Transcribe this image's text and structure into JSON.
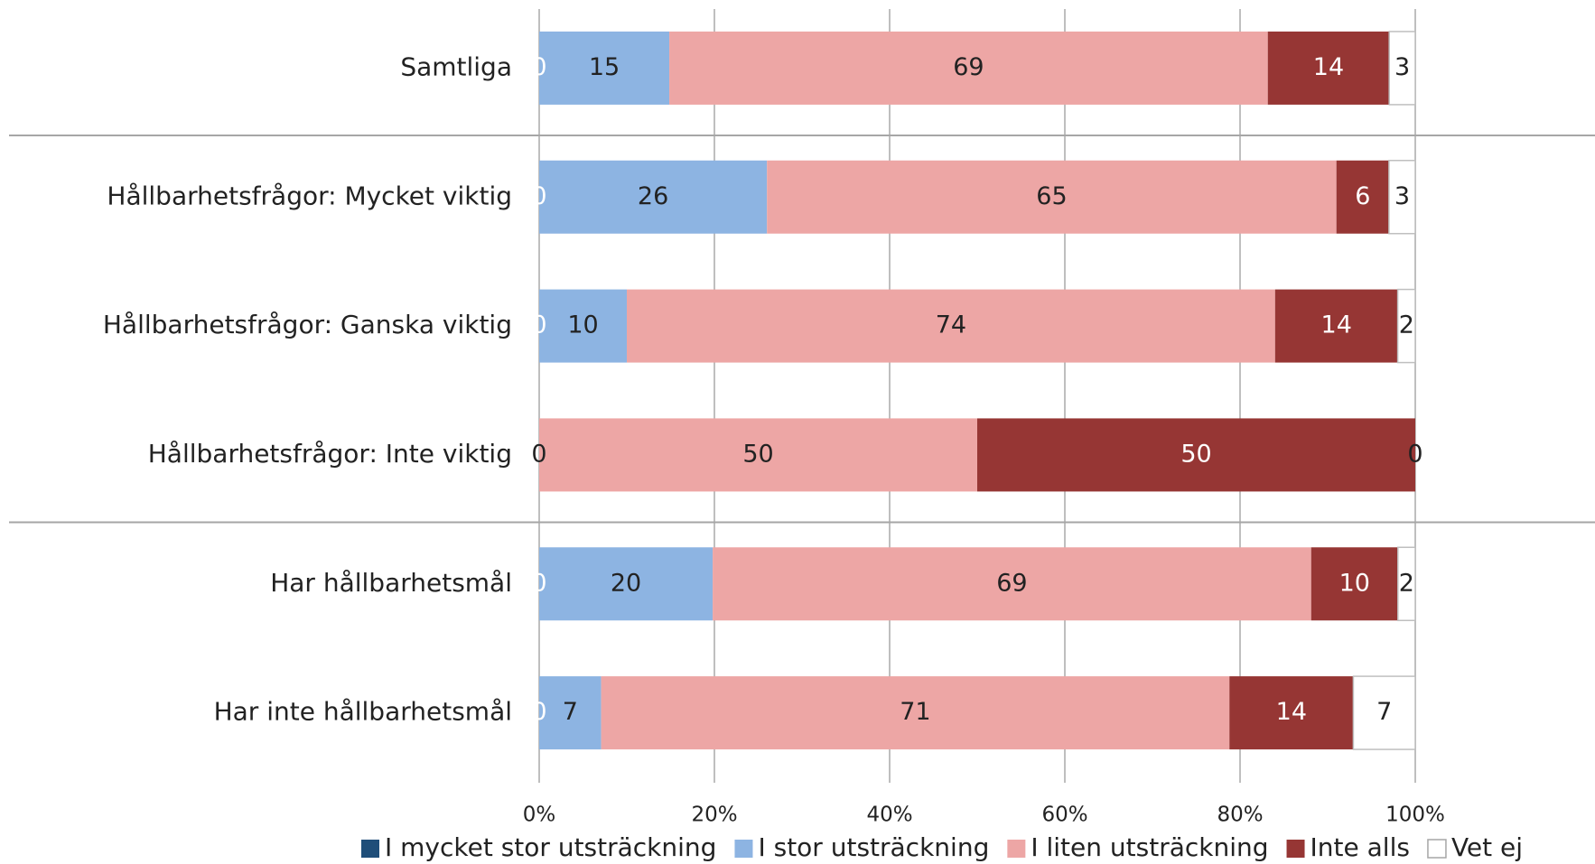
{
  "chart_data": {
    "type": "bar",
    "orientation": "horizontal",
    "stacking": "percent",
    "categories": [
      "Samtliga",
      "Hållbarhetsfrågor: Mycket viktig",
      "Hållbarhetsfrågor: Ganska viktig",
      "Hållbarhetsfrågor: Inte viktig",
      "Har hållbarhetsmål",
      "Har inte hållbarhetsmål"
    ],
    "series": [
      {
        "name": "I mycket stor utsträckning",
        "color": "#1f4e79",
        "values": [
          0,
          0,
          0,
          0,
          0,
          0
        ]
      },
      {
        "name": "I stor utsträckning",
        "color": "#8db4e2",
        "values": [
          15,
          26,
          10,
          0,
          20,
          7
        ]
      },
      {
        "name": "I liten utsträckning",
        "color": "#eda6a5",
        "values": [
          69,
          65,
          74,
          50,
          69,
          71
        ]
      },
      {
        "name": "Inte alls",
        "color": "#963634",
        "values": [
          14,
          6,
          14,
          50,
          10,
          14
        ]
      },
      {
        "name": "Vet ej",
        "color": "#ffffff",
        "values": [
          3,
          3,
          2,
          0,
          2,
          7
        ]
      }
    ],
    "xlim": [
      0,
      100
    ],
    "xticks": [
      {
        "value": 0,
        "label": "0%"
      },
      {
        "value": 20,
        "label": "20%"
      },
      {
        "value": 40,
        "label": "40%"
      },
      {
        "value": 60,
        "label": "60%"
      },
      {
        "value": 80,
        "label": "80%"
      },
      {
        "value": 100,
        "label": "100%"
      }
    ],
    "grid": true,
    "legend": "bottom"
  }
}
